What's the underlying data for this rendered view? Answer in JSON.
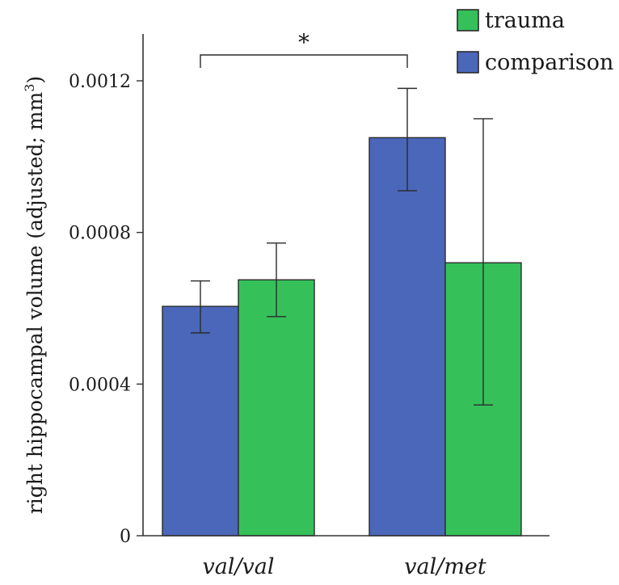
{
  "chart_data": {
    "type": "bar",
    "categories": [
      "val/val",
      "val/met"
    ],
    "series": [
      {
        "name": "comparison",
        "color": "#4a67ba",
        "values": [
          0.000605,
          0.00105
        ],
        "error_low": [
          0.000535,
          0.00091
        ],
        "error_high": [
          0.000672,
          0.00118
        ]
      },
      {
        "name": "trauma",
        "color": "#35c05a",
        "values": [
          0.000675,
          0.00072
        ],
        "error_low": [
          0.000578,
          0.000345
        ],
        "error_high": [
          0.000772,
          0.0011
        ]
      }
    ],
    "legend_order": [
      "trauma",
      "comparison"
    ],
    "xlabel": "",
    "ylabel": "right hippocampal volume (adjusted; mm",
    "ylabel_superscript": "3",
    "ylabel_close": ")",
    "ylim": [
      0,
      0.0012
    ],
    "yticks": [
      0,
      0.0004,
      0.0008,
      0.0012
    ],
    "ytick_labels": [
      "0",
      "0.0004",
      "0.0008",
      "0.0012"
    ],
    "grid": false,
    "legend_position": "top-right",
    "annotation": {
      "text": "*",
      "between": [
        "val/val",
        "val/met"
      ],
      "series": "comparison"
    }
  }
}
